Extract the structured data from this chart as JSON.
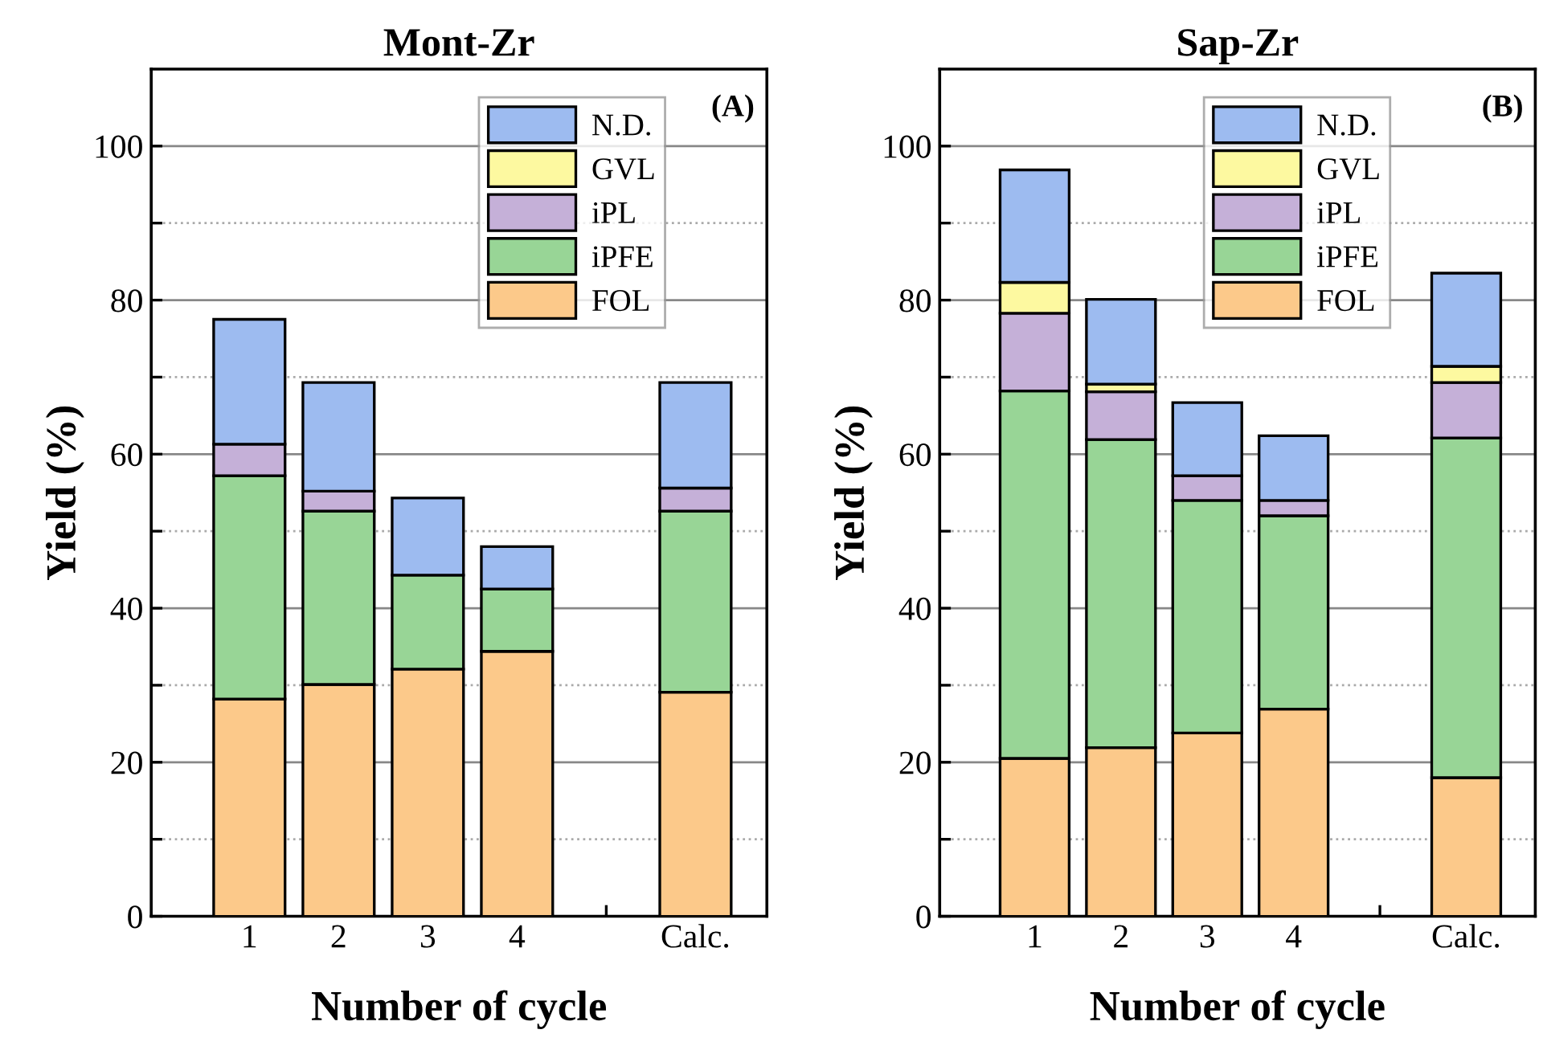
{
  "chart_data": [
    {
      "type": "bar",
      "title": "Mont-Zr",
      "xlabel": "Number of cycle",
      "ylabel": "Yield (%)",
      "stacked": true,
      "categories": [
        "1",
        "2",
        "3",
        "4",
        null,
        "Calc."
      ],
      "series": [
        {
          "name": "FOL",
          "color": "#fcc98a",
          "values": [
            28.2,
            30.1,
            32.1,
            34.4,
            null,
            29.1
          ]
        },
        {
          "name": "iPFE",
          "color": "#98d596",
          "values": [
            29.0,
            22.5,
            12.2,
            8.1,
            null,
            23.5
          ]
        },
        {
          "name": "iPL",
          "color": "#c5b0d8",
          "values": [
            4.1,
            2.6,
            null,
            null,
            null,
            3.0
          ]
        },
        {
          "name": "GVL",
          "color": "#fdf9a0",
          "values": [
            null,
            null,
            null,
            null,
            null,
            null
          ]
        },
        {
          "name": "N.D.",
          "color": "#9dbbf0",
          "values": [
            16.2,
            14.1,
            10.0,
            5.5,
            null,
            13.7
          ]
        }
      ],
      "ylim": [
        0,
        110
      ],
      "yticks": [
        0,
        {
          "value": 10,
          "label": null
        },
        20,
        {
          "value": 30,
          "label": null
        },
        40,
        {
          "value": 50,
          "label": null
        },
        60,
        {
          "value": 70,
          "label": null
        },
        80,
        {
          "value": 90,
          "label": null
        },
        100
      ],
      "grid": "y",
      "legend": "top right",
      "annotations": [
        "(A)"
      ]
    },
    {
      "type": "bar",
      "title": "Sap-Zr",
      "xlabel": "Number of cycle",
      "ylabel": "Yield (%)",
      "stacked": true,
      "categories": [
        "1",
        "2",
        "3",
        "4",
        null,
        "Calc."
      ],
      "series": [
        {
          "name": "FOL",
          "color": "#fcc98a",
          "values": [
            20.5,
            21.9,
            23.8,
            26.9,
            null,
            18.0
          ]
        },
        {
          "name": "iPFE",
          "color": "#98d596",
          "values": [
            47.7,
            40.0,
            30.2,
            25.1,
            null,
            44.1
          ]
        },
        {
          "name": "iPL",
          "color": "#c5b0d8",
          "values": [
            10.1,
            6.2,
            3.2,
            2.0,
            null,
            7.2
          ]
        },
        {
          "name": "GVL",
          "color": "#fdf9a0",
          "values": [
            4.0,
            1.0,
            null,
            null,
            null,
            2.1
          ]
        },
        {
          "name": "N.D.",
          "color": "#9dbbf0",
          "values": [
            14.6,
            11.0,
            9.5,
            8.4,
            null,
            12.1
          ]
        }
      ],
      "ylim": [
        0,
        110
      ],
      "yticks": [
        0,
        {
          "value": 10,
          "label": null
        },
        20,
        {
          "value": 30,
          "label": null
        },
        40,
        {
          "value": 50,
          "label": null
        },
        60,
        {
          "value": 70,
          "label": null
        },
        80,
        {
          "value": 90,
          "label": null
        },
        100
      ],
      "grid": "y",
      "legend": "top",
      "annotations": [
        "(B)"
      ]
    }
  ]
}
